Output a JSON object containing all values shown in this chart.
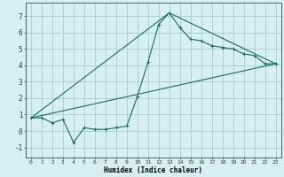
{
  "title": "",
  "xlabel": "Humidex (Indice chaleur)",
  "bg_color": "#d6f0f0",
  "grid_color": "#aacccc",
  "line_color": "#1a6b5a",
  "xlim": [
    -0.5,
    23.5
  ],
  "ylim": [
    -1.6,
    7.8
  ],
  "xticks": [
    0,
    1,
    2,
    3,
    4,
    5,
    6,
    7,
    8,
    9,
    10,
    11,
    12,
    13,
    14,
    15,
    16,
    17,
    18,
    19,
    20,
    21,
    22,
    23
  ],
  "yticks": [
    -1,
    0,
    1,
    2,
    3,
    4,
    5,
    6,
    7
  ],
  "series1_x": [
    0,
    1,
    2,
    3,
    4,
    5,
    6,
    7,
    8,
    9,
    10,
    11,
    12,
    13,
    14,
    15,
    16,
    17,
    18,
    19,
    20,
    21,
    22,
    23
  ],
  "series1_y": [
    0.8,
    0.8,
    0.5,
    0.7,
    -0.7,
    0.2,
    0.1,
    0.1,
    0.2,
    0.3,
    2.1,
    4.2,
    6.5,
    7.2,
    6.3,
    5.6,
    5.5,
    5.2,
    5.1,
    5.0,
    4.7,
    4.6,
    4.1,
    4.1
  ],
  "series2_x": [
    0,
    13,
    23
  ],
  "series2_y": [
    0.8,
    7.2,
    4.1
  ],
  "series3_x": [
    0,
    23
  ],
  "series3_y": [
    0.8,
    4.1
  ]
}
